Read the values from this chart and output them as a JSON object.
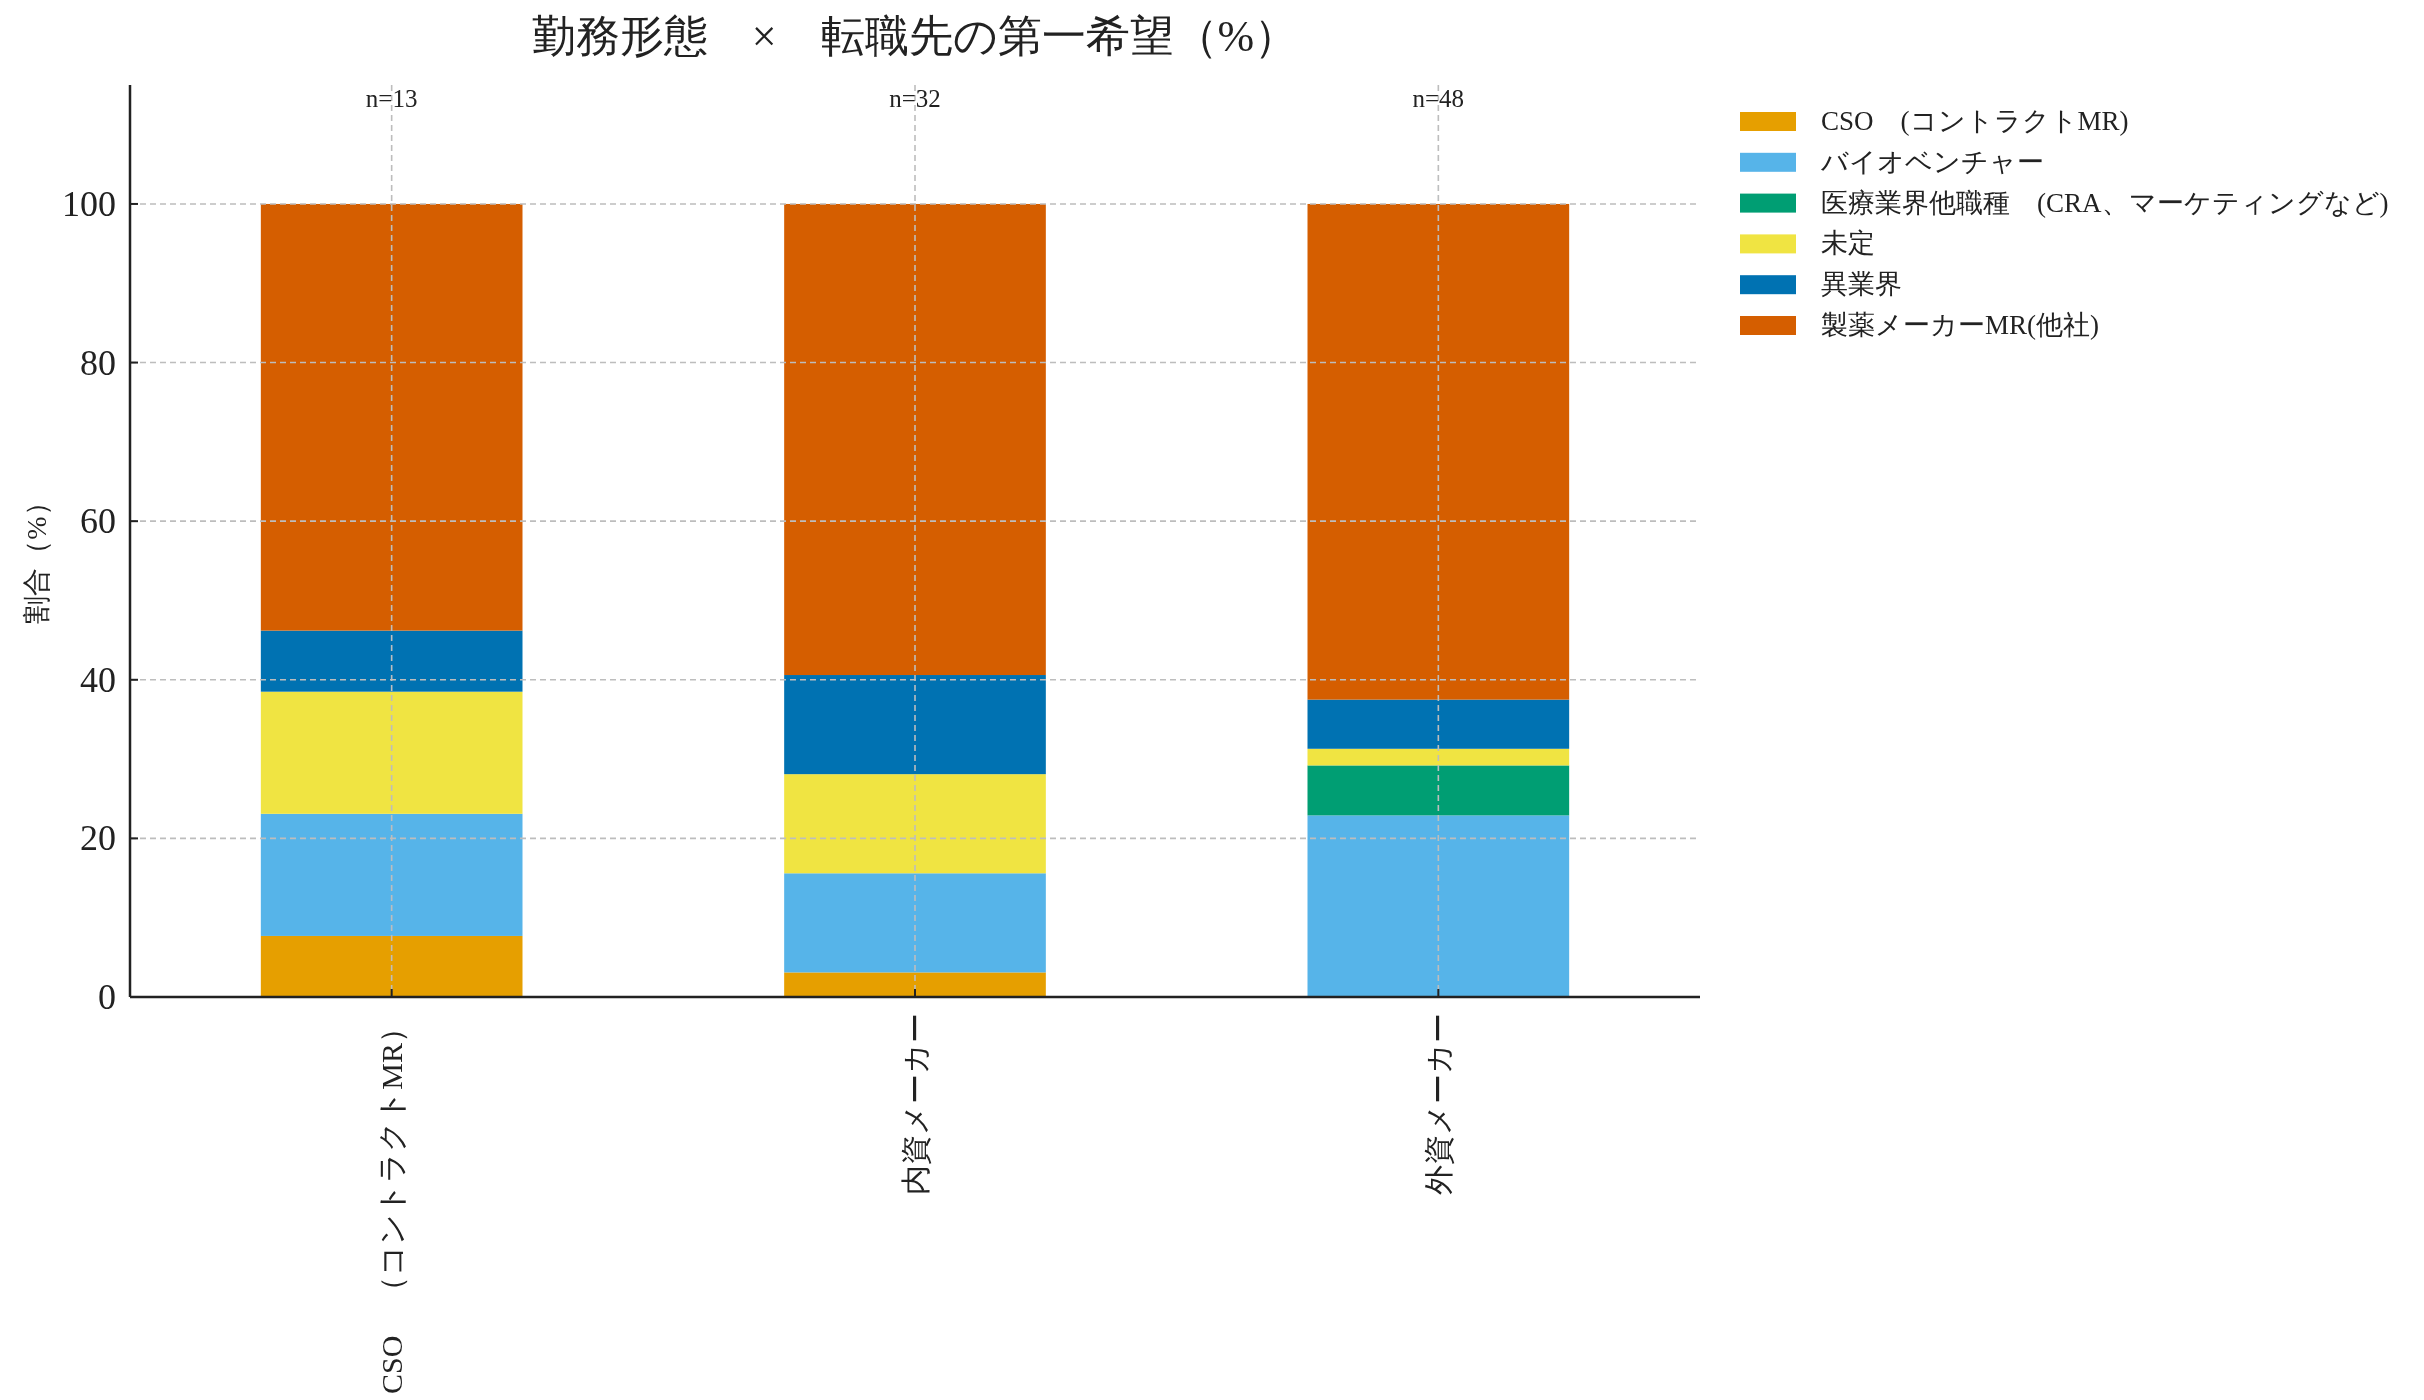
{
  "chart_data": {
    "type": "bar",
    "title": "勤務形態　×　転職先の第一希望（%）",
    "ylabel": "割合（%）",
    "categories": [
      "CSO　（コントラクトMR）",
      "内資メーカー",
      "外資メーカー"
    ],
    "stacked": true,
    "series": [
      {
        "name": "CSO　(コントラクトMR)",
        "color": "#e69f00",
        "values": [
          7.7,
          3.1,
          0
        ]
      },
      {
        "name": "バイオベンチャー",
        "color": "#56b4e9",
        "values": [
          15.4,
          12.5,
          22.9
        ]
      },
      {
        "name": "医療業界他職種　(CRA、マーケティングなど)",
        "color": "#009e73",
        "values": [
          0,
          0,
          6.3
        ]
      },
      {
        "name": "未定",
        "color": "#f0e442",
        "values": [
          15.4,
          12.5,
          2.1
        ]
      },
      {
        "name": "異業界",
        "color": "#0072b2",
        "values": [
          7.7,
          12.5,
          6.2
        ]
      },
      {
        "name": "製薬メーカーMR(他社)",
        "color": "#d55e00",
        "values": [
          53.8,
          59.4,
          62.5
        ]
      }
    ],
    "ylim": [
      0,
      115
    ],
    "yticks": [
      0,
      20,
      40,
      60,
      80,
      100
    ],
    "grid": true,
    "legend": "top right",
    "annotations": [
      "n=13",
      "n=32",
      "n=48"
    ]
  }
}
